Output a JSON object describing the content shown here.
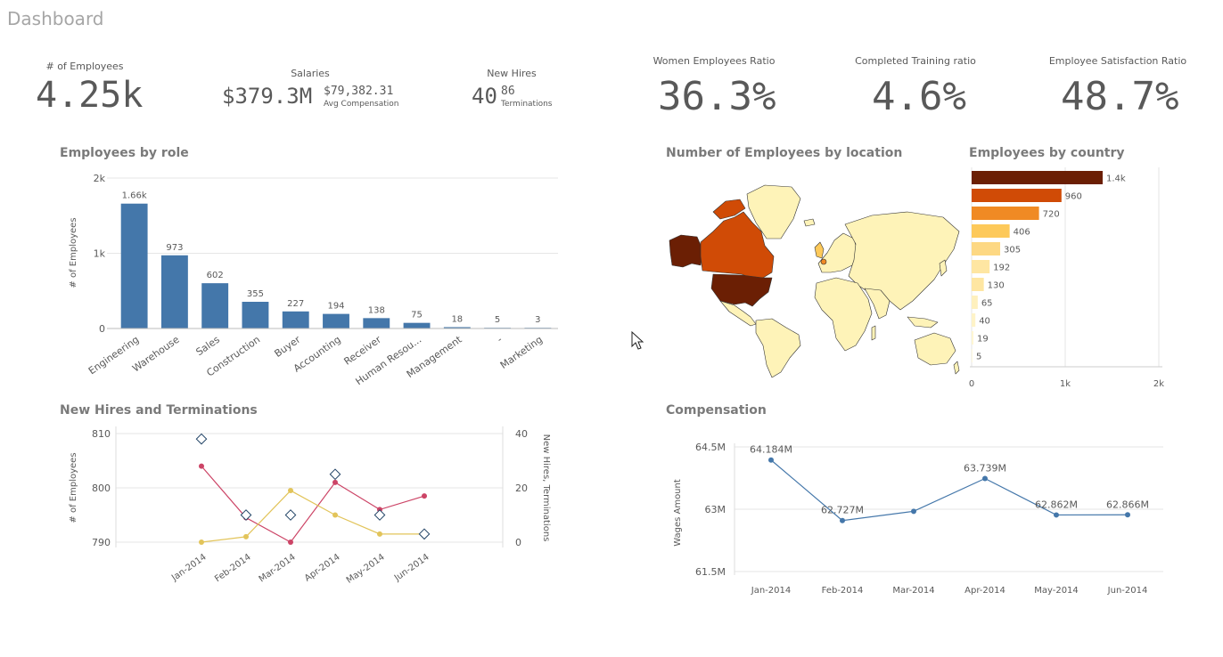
{
  "page": {
    "title": "Dashboard"
  },
  "kpis": {
    "employees": {
      "label": "# of Employees",
      "value": "4.25k"
    },
    "salaries": {
      "label": "Salaries",
      "value": "$379.3M",
      "secondary_value": "$79,382.31",
      "secondary_label": "Avg Compensation"
    },
    "new_hires": {
      "label": "New Hires",
      "value": "40",
      "secondary_value": "86",
      "secondary_label": "Terminations"
    },
    "women_ratio": {
      "label": "Women Employees Ratio",
      "value": "36.3%"
    },
    "training_ratio": {
      "label": "Completed Training ratio",
      "value": "4.6%"
    },
    "satisfaction_ratio": {
      "label": "Employee Satisfaction Ratio",
      "value": "48.7%"
    }
  },
  "panels": {
    "by_role": "Employees by role",
    "by_location": "Number of Employees by location",
    "by_country": "Employees by country",
    "hires_terms": "New Hires and Terminations",
    "compensation": "Compensation"
  },
  "colors": {
    "bar": "#4477aa",
    "line_blue": "#4477aa",
    "line_red": "#cc4466",
    "line_yellow": "#e2c45a",
    "map_dark": "#6b1f04",
    "map_mid": "#d04b06",
    "map_light": "#fef3b8",
    "grid": "#e6e6e6"
  },
  "chart_data": [
    {
      "type": "bar",
      "title": "Employees by role",
      "ylabel": "# of Employees",
      "yticks": [
        "0",
        "1k",
        "2k"
      ],
      "ylim": [
        0,
        2000
      ],
      "categories": [
        "Engineering",
        "Warehouse",
        "Sales",
        "Construction",
        "Buyer",
        "Accounting",
        "Receiver",
        "Human Resou...",
        "Management",
        "-",
        "Marketing"
      ],
      "values": [
        1660,
        973,
        602,
        355,
        227,
        194,
        138,
        75,
        18,
        5,
        3
      ],
      "labels": [
        "1.66k",
        "973",
        "602",
        "355",
        "227",
        "194",
        "138",
        "75",
        "18",
        "5",
        "3"
      ]
    },
    {
      "type": "bar",
      "orientation": "horizontal",
      "title": "Employees by country",
      "xticks": [
        "0",
        "1k",
        "2k"
      ],
      "xlim": [
        0,
        2000
      ],
      "values": [
        1400,
        960,
        720,
        406,
        305,
        192,
        130,
        65,
        40,
        19,
        5
      ],
      "labels": [
        "1.4k",
        "960",
        "720",
        "406",
        "305",
        "192",
        "130",
        "65",
        "40",
        "19",
        "5"
      ],
      "colors": [
        "#6b1f04",
        "#d04b06",
        "#f08a24",
        "#fdc95a",
        "#fdd883",
        "#fee6a2",
        "#fee6a2",
        "#fef0bd",
        "#fef3c8",
        "#fef6d3",
        "#fef8dd"
      ]
    },
    {
      "type": "line",
      "title": "New Hires and Terminations",
      "ylabel": "# of Employees",
      "y2label": "New Hires, Terminations",
      "yticks": [
        "790",
        "800",
        "810"
      ],
      "ylim": [
        790,
        810
      ],
      "y2ticks": [
        "0",
        "20",
        "40"
      ],
      "y2lim": [
        0,
        40
      ],
      "x": [
        "Jan-2014",
        "Feb-2014",
        "Mar-2014",
        "Apr-2014",
        "May-2014",
        "Jun-2014"
      ],
      "series": [
        {
          "values": [
            804,
            794.5,
            790,
            801,
            796,
            798.5
          ],
          "axis": "left",
          "marker": "dot",
          "color": "#cc4466"
        },
        {
          "values": [
            0,
            2,
            19,
            10,
            3,
            3
          ],
          "axis": "right",
          "marker": "dot",
          "color": "#e2c45a"
        },
        {
          "values": [
            38,
            10,
            10,
            25,
            10,
            3
          ],
          "axis": "right",
          "marker": "diamond",
          "color": "#224466"
        }
      ]
    },
    {
      "type": "line",
      "title": "Compensation",
      "ylabel": "Wages Amount",
      "yticks": [
        "61.5M",
        "63M",
        "64.5M"
      ],
      "ylim": [
        61.5,
        64.5
      ],
      "x": [
        "Jan-2014",
        "Feb-2014",
        "Mar-2014",
        "Apr-2014",
        "May-2014",
        "Jun-2014"
      ],
      "values": [
        64.184,
        62.727,
        62.95,
        63.739,
        62.862,
        62.866
      ],
      "point_labels": [
        "64.184M",
        "62.727M",
        "",
        "63.739M",
        "62.862M",
        "62.866M"
      ]
    }
  ]
}
